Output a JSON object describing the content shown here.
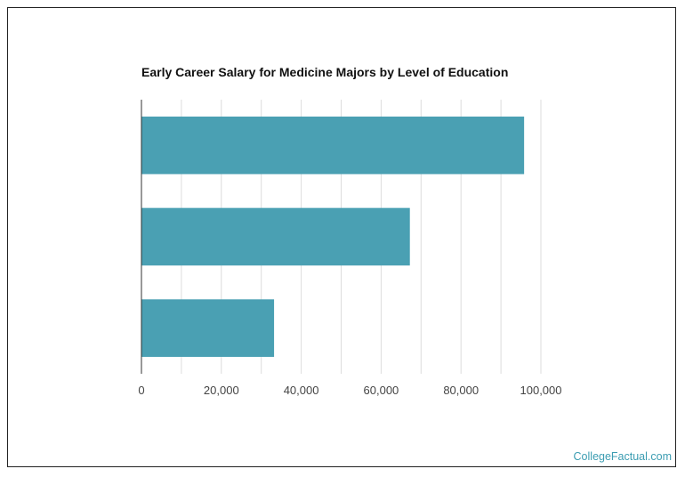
{
  "chart_data": {
    "type": "bar",
    "orientation": "horizontal",
    "title": "Early Career Salary for Medicine Majors by Level of Education",
    "xlabel": "",
    "ylabel": "",
    "categories": [
      "",
      "",
      ""
    ],
    "values": [
      95800,
      67200,
      33200
    ],
    "xlim": [
      0,
      100000
    ],
    "xticks": [
      0,
      20000,
      40000,
      60000,
      80000,
      100000
    ],
    "xtick_labels": [
      "0",
      "20,000",
      "40,000",
      "60,000",
      "80,000",
      "100,000"
    ],
    "grid": true,
    "legend": "none",
    "bar_color": "#4aa0b3"
  },
  "footer": {
    "credit": "CollegeFactual.com"
  }
}
